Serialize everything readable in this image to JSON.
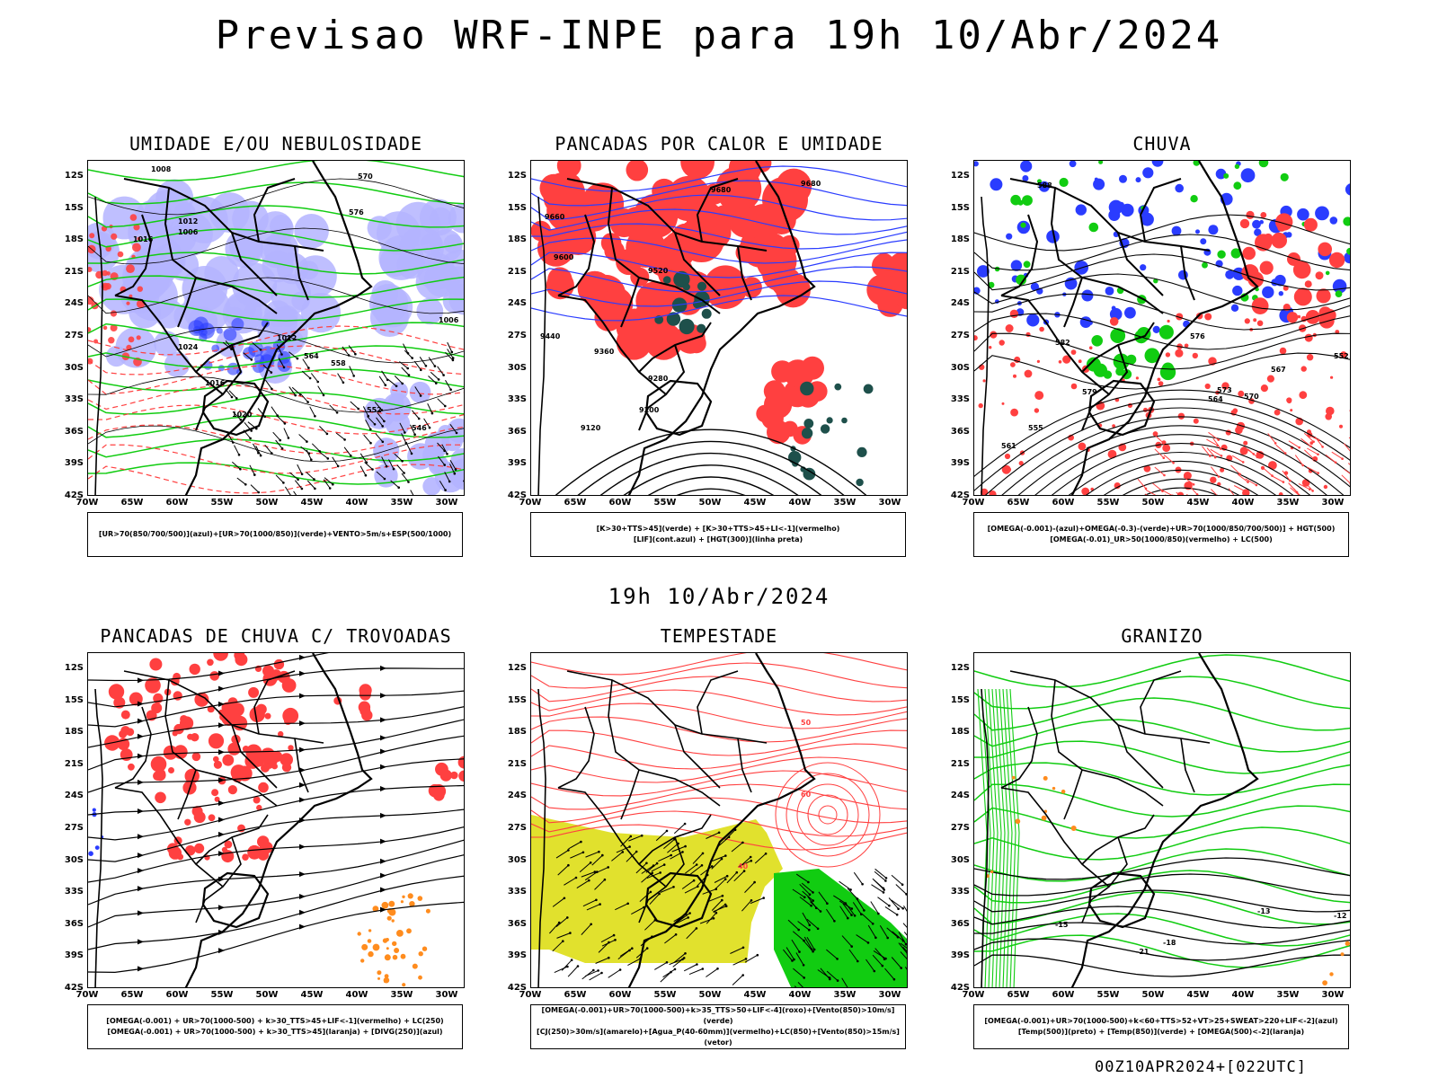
{
  "main_title": "Previsao WRF-INPE  para 19h 10/Abr/2024",
  "mid_title": "19h 10/Abr/2024",
  "footer": "00Z10APR2024+[022UTC]",
  "axes": {
    "lat_labels": [
      "12S",
      "15S",
      "18S",
      "21S",
      "24S",
      "27S",
      "30S",
      "33S",
      "36S",
      "39S",
      "42S"
    ],
    "lon_labels": [
      "70W",
      "65W",
      "60W",
      "55W",
      "50W",
      "45W",
      "40W",
      "35W",
      "30W"
    ]
  },
  "colors": {
    "blue": "#2a3cff",
    "green": "#11cc11",
    "red": "#ff4040",
    "lavender": "#b4b4ff",
    "dark_teal": "#1e504b",
    "yellow": "#e1e12d",
    "orange": "#ff8c1e",
    "black": "#000000"
  },
  "panels": [
    {
      "title": "UMIDADE E/OU NEBULOSIDADE",
      "legend": [
        "[UR>70(850/700/500)](azul)+[UR>70(1000/850)](verde)+VENTO>5m/s+ESP(500/1000)"
      ],
      "contour_labels": [
        "1008",
        "1012",
        "1006",
        "1016",
        "1020",
        "1024",
        "1012",
        "1016",
        "1006",
        "576",
        "570",
        "564",
        "558",
        "552",
        "546"
      ]
    },
    {
      "title": "PANCADAS POR CALOR E UMIDADE",
      "legend": [
        "[K>30+TTS>45](verde) + [K>30+TTS>45+LI<-1](vermelho)",
        "[LIF](cont.azul) + [HGT(300)](linha preta)"
      ],
      "contour_labels": [
        "9680",
        "9660",
        "9600",
        "9520",
        "9440",
        "9360",
        "9280",
        "9200",
        "9120",
        "9680"
      ]
    },
    {
      "title": "CHUVA",
      "legend": [
        "[OMEGA(-0.001)-(azul)+OMEGA(-0.3)-(verde)+UR>70(1000/850/700/500)] + HGT(500)",
        "[OMEGA(-0.01)_UR>50(1000/850)(vermelho) + LC(500)"
      ],
      "contour_labels": [
        "588",
        "582",
        "579",
        "576",
        "573",
        "570",
        "567",
        "564",
        "561",
        "555",
        "552"
      ]
    },
    {
      "title": "PANCADAS DE CHUVA C/ TROVOADAS",
      "legend": [
        "[OMEGA(-0.001) + UR>70(1000-500) + k>30_TTS>45+LIF<-1](vermelho) + LC(250)",
        "[OMEGA(-0.001) + UR>70(1000-500) + k>30_TTS>45](laranja) + [DIVG(250)](azul)"
      ],
      "contour_labels": []
    },
    {
      "title": "TEMPESTADE",
      "legend": [
        "[OMEGA(-0.001)+UR>70(1000-500)+k>35_TTS>50+LIF<-4](roxo)+[Vento(850)>10m/s](verde)",
        "[CJ(250)>30m/s](amarelo)+[Agua_P(40-60mm)](vermelho)+LC(850)+[Vento(850)>15m/s](vetor)"
      ],
      "contour_labels": [
        "40",
        "50",
        "60"
      ]
    },
    {
      "title": "GRANIZO",
      "legend": [
        "[OMEGA(-0.001)+UR>70(1000-500)+k<60+TTS>52+VT>25+SWEAT>220+LIF<-2](azul)",
        "[Temp(500)](preto) + [Temp(850)](verde) + [OMEGA(500)<-2](laranja)"
      ],
      "contour_labels": [
        "-12",
        "-15",
        "-18",
        "-21",
        "-13"
      ]
    }
  ]
}
